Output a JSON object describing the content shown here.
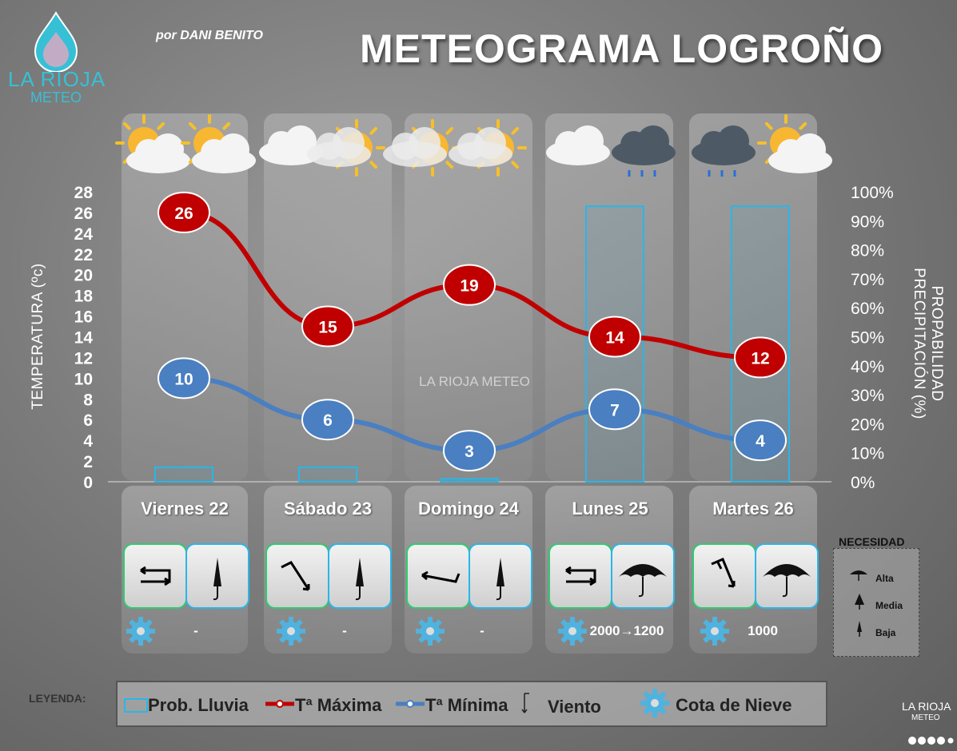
{
  "header": {
    "title": "METEOGRAMA LOGROÑO",
    "author": "por DANI BENITO",
    "logo_line1": "LA RIOJA",
    "logo_line2": "METEO",
    "watermark": "LA RIOJA METEO",
    "brand_line1": "LA RIOJA",
    "brand_line2": "METEO"
  },
  "chart_data": {
    "type": "line",
    "categories": [
      "Viernes 22",
      "Sábado 23",
      "Domingo 24",
      "Lunes 25",
      "Martes 26"
    ],
    "series": [
      {
        "name": "Tª Máxima",
        "values": [
          26,
          15,
          19,
          14,
          12
        ],
        "color": "#c00000"
      },
      {
        "name": "Tª Mínima",
        "values": [
          10,
          6,
          3,
          7,
          4
        ],
        "color": "#4a7fc1"
      },
      {
        "name": "Prob. Lluvia",
        "values": [
          5,
          5,
          1,
          95,
          95
        ],
        "color": "#29b6e8",
        "type": "bar"
      }
    ],
    "ylabel": "TEMPERATURA (ºc)",
    "ylim": [
      0,
      28
    ],
    "yticks": [
      "0",
      "2",
      "4",
      "6",
      "8",
      "10",
      "12",
      "14",
      "16",
      "18",
      "20",
      "22",
      "24",
      "26",
      "28"
    ],
    "y2label": "PROPABILIDAD PRECIPITACIÓN (%)",
    "y2lim": [
      0,
      100
    ],
    "y2ticks": [
      "0%",
      "10%",
      "20%",
      "30%",
      "40%",
      "50%",
      "60%",
      "70%",
      "80%",
      "90%",
      "100%"
    ],
    "weather_icons": [
      [
        "sun-cloud-icon",
        "sun-cloud-icon"
      ],
      [
        "cloud-icon",
        "sun-haze-icon"
      ],
      [
        "sun-haze-icon",
        "sun-haze-icon"
      ],
      [
        "cloud-icon",
        "rain-cloud-icon"
      ],
      [
        "rain-cloud-icon",
        "sun-cloud-icon"
      ]
    ]
  },
  "days": [
    {
      "wind_icon": "wind-east-icon",
      "umbrella": "umbrella-low-icon",
      "snow": "-"
    },
    {
      "wind_icon": "wind-northwest-icon",
      "umbrella": "umbrella-low-icon",
      "snow": "-"
    },
    {
      "wind_icon": "wind-west-icon",
      "umbrella": "umbrella-low-icon",
      "snow": "-"
    },
    {
      "wind_icon": "wind-east-icon",
      "umbrella": "umbrella-high-icon",
      "snow": "2000→1200"
    },
    {
      "wind_icon": "wind-northwest-icon",
      "umbrella": "umbrella-high-icon",
      "snow": "1000"
    }
  ],
  "legend": {
    "heading": "LEYENDA:",
    "rain": "Prob. Lluvia",
    "max": "Tª Máxima",
    "min": "Tª Mínima",
    "wind": "Viento",
    "snow": "Cota de Nieve"
  },
  "necesidad": {
    "title": "NECESIDAD",
    "items": [
      "Alta",
      "Media",
      "Baja"
    ]
  }
}
